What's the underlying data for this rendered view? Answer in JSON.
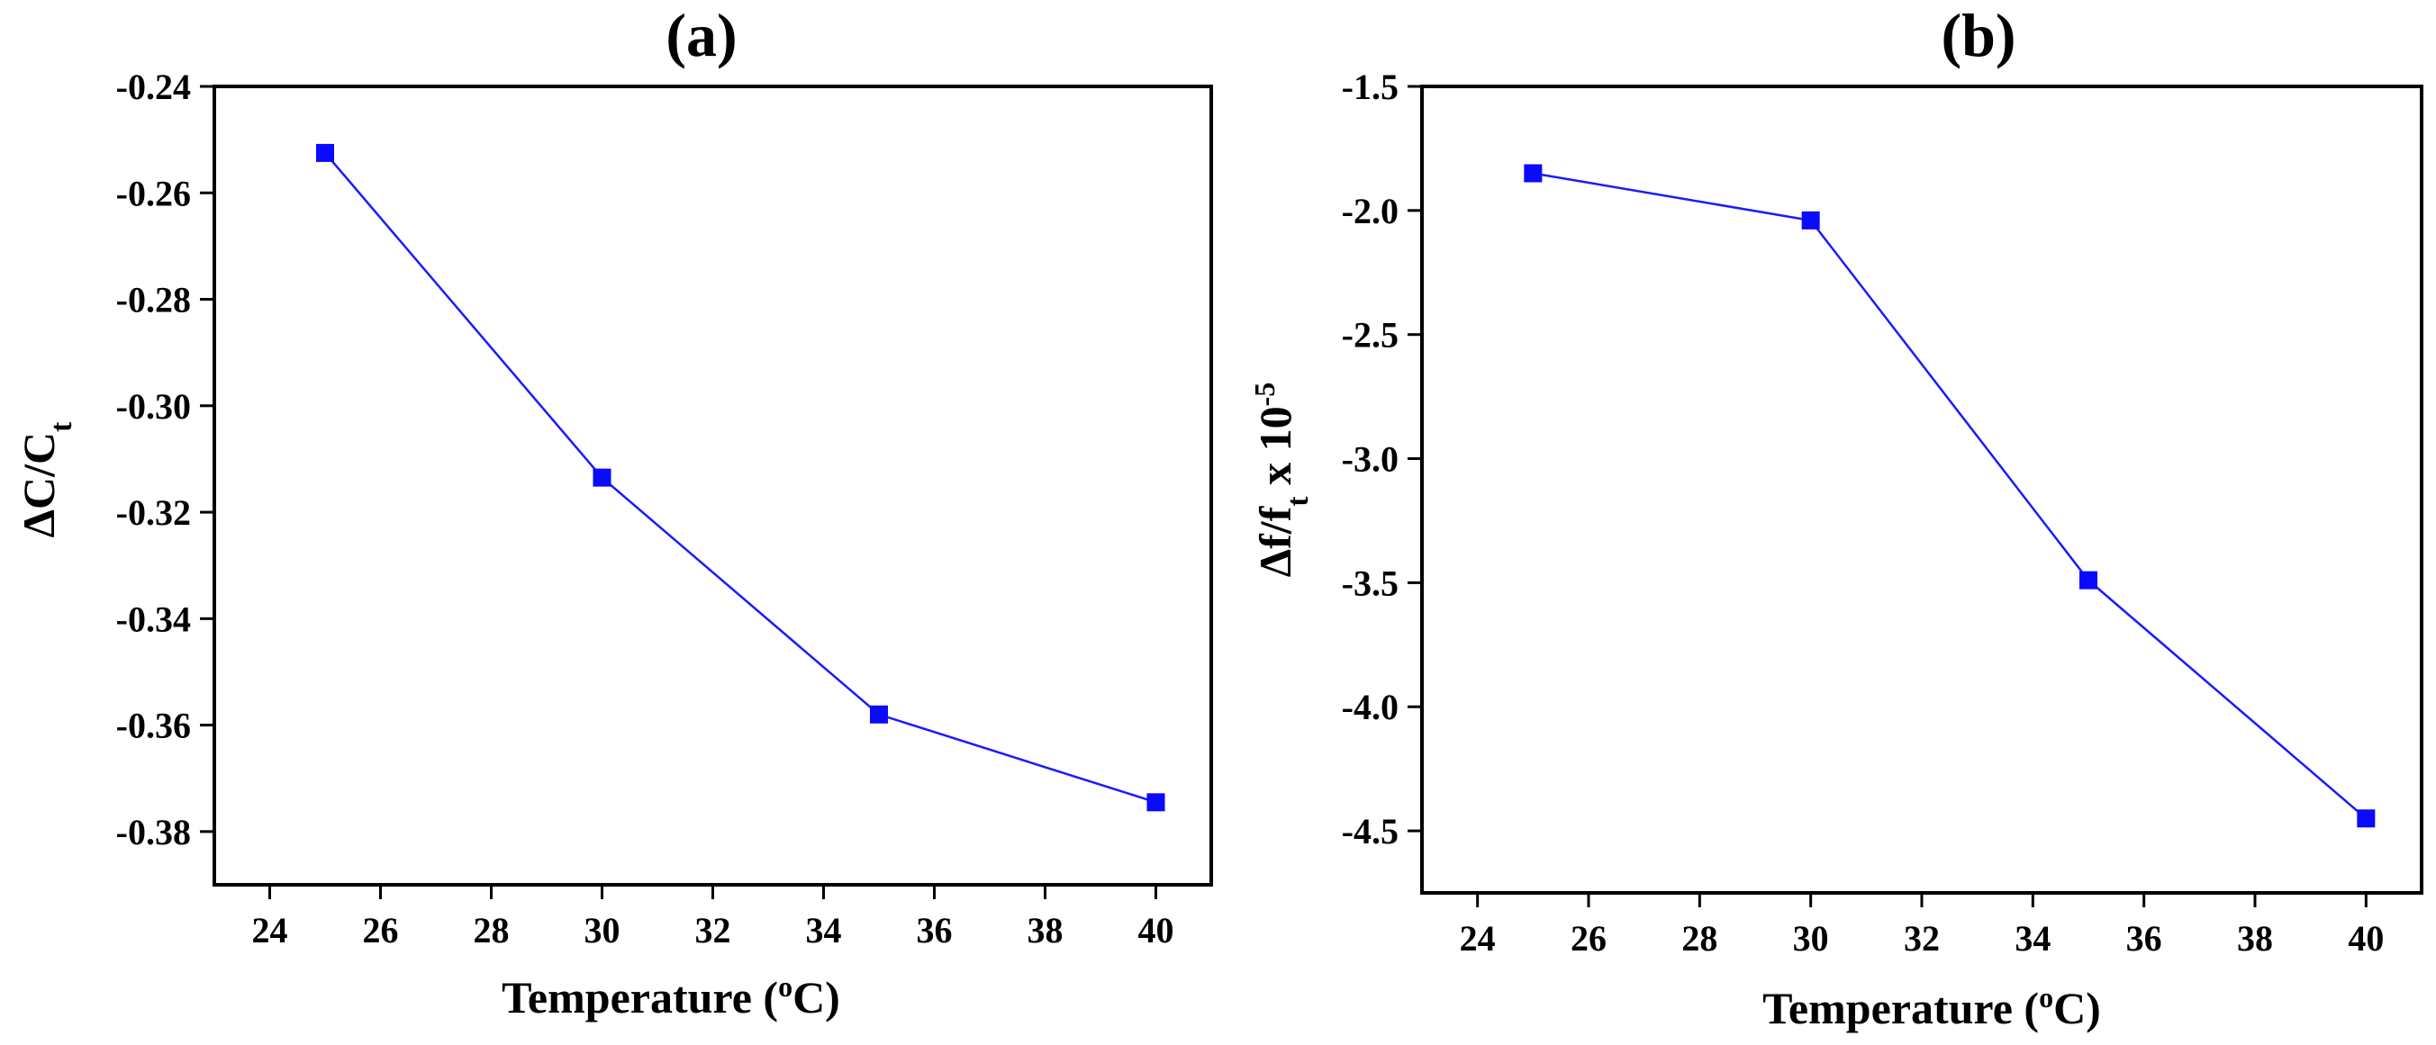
{
  "chart_data": [
    {
      "type": "line",
      "title": "(a)",
      "xlabel": {
        "main": "Temperature (",
        "sup": "o",
        "tail": "C)"
      },
      "ylabel": {
        "main": "ΔC/C",
        "sub": "t"
      },
      "x": [
        25,
        30,
        35,
        40
      ],
      "series": [
        {
          "name": "ΔC/Ct",
          "values": [
            -0.2525,
            -0.3135,
            -0.358,
            -0.3745
          ]
        }
      ],
      "xlim": [
        23,
        41
      ],
      "ylim": [
        -0.39,
        -0.24
      ],
      "xticks": [
        24,
        26,
        28,
        30,
        32,
        34,
        36,
        38,
        40
      ],
      "xtick_labels": [
        "24",
        "26",
        "28",
        "30",
        "32",
        "34",
        "36",
        "38",
        "40"
      ],
      "yticks": [
        -0.24,
        -0.26,
        -0.28,
        -0.3,
        -0.32,
        -0.34,
        -0.36,
        -0.38
      ],
      "ytick_labels": [
        "-0.24",
        "-0.26",
        "-0.28",
        "-0.30",
        "-0.32",
        "-0.34",
        "-0.36",
        "-0.38"
      ],
      "colors": {
        "line": "#1a1aff",
        "marker": "#0a0aff"
      },
      "grid": false
    },
    {
      "type": "line",
      "title": "(b)",
      "xlabel": {
        "main": "Temperature (",
        "sup": "o",
        "tail": "C)"
      },
      "ylabel": {
        "main": "Δf/f",
        "sub": "t",
        "mid": " x 10",
        "sup": "-5"
      },
      "x": [
        25,
        30,
        35,
        40
      ],
      "series": [
        {
          "name": "Δf/ft x 10^-5",
          "values": [
            -1.85,
            -2.04,
            -3.49,
            -4.45
          ]
        }
      ],
      "xlim": [
        23,
        41
      ],
      "ylim": [
        -4.75,
        -1.5
      ],
      "xticks": [
        24,
        26,
        28,
        30,
        32,
        34,
        36,
        38,
        40
      ],
      "xtick_labels": [
        "24",
        "26",
        "28",
        "30",
        "32",
        "34",
        "36",
        "38",
        "40"
      ],
      "yticks": [
        -1.5,
        -2.0,
        -2.5,
        -3.0,
        -3.5,
        -4.0,
        -4.5
      ],
      "ytick_labels": [
        "-1.5",
        "-2.0",
        "-2.5",
        "-3.0",
        "-3.5",
        "-4.0",
        "-4.5"
      ],
      "colors": {
        "line": "#1a1aff",
        "marker": "#0a0aff"
      },
      "grid": false
    }
  ]
}
